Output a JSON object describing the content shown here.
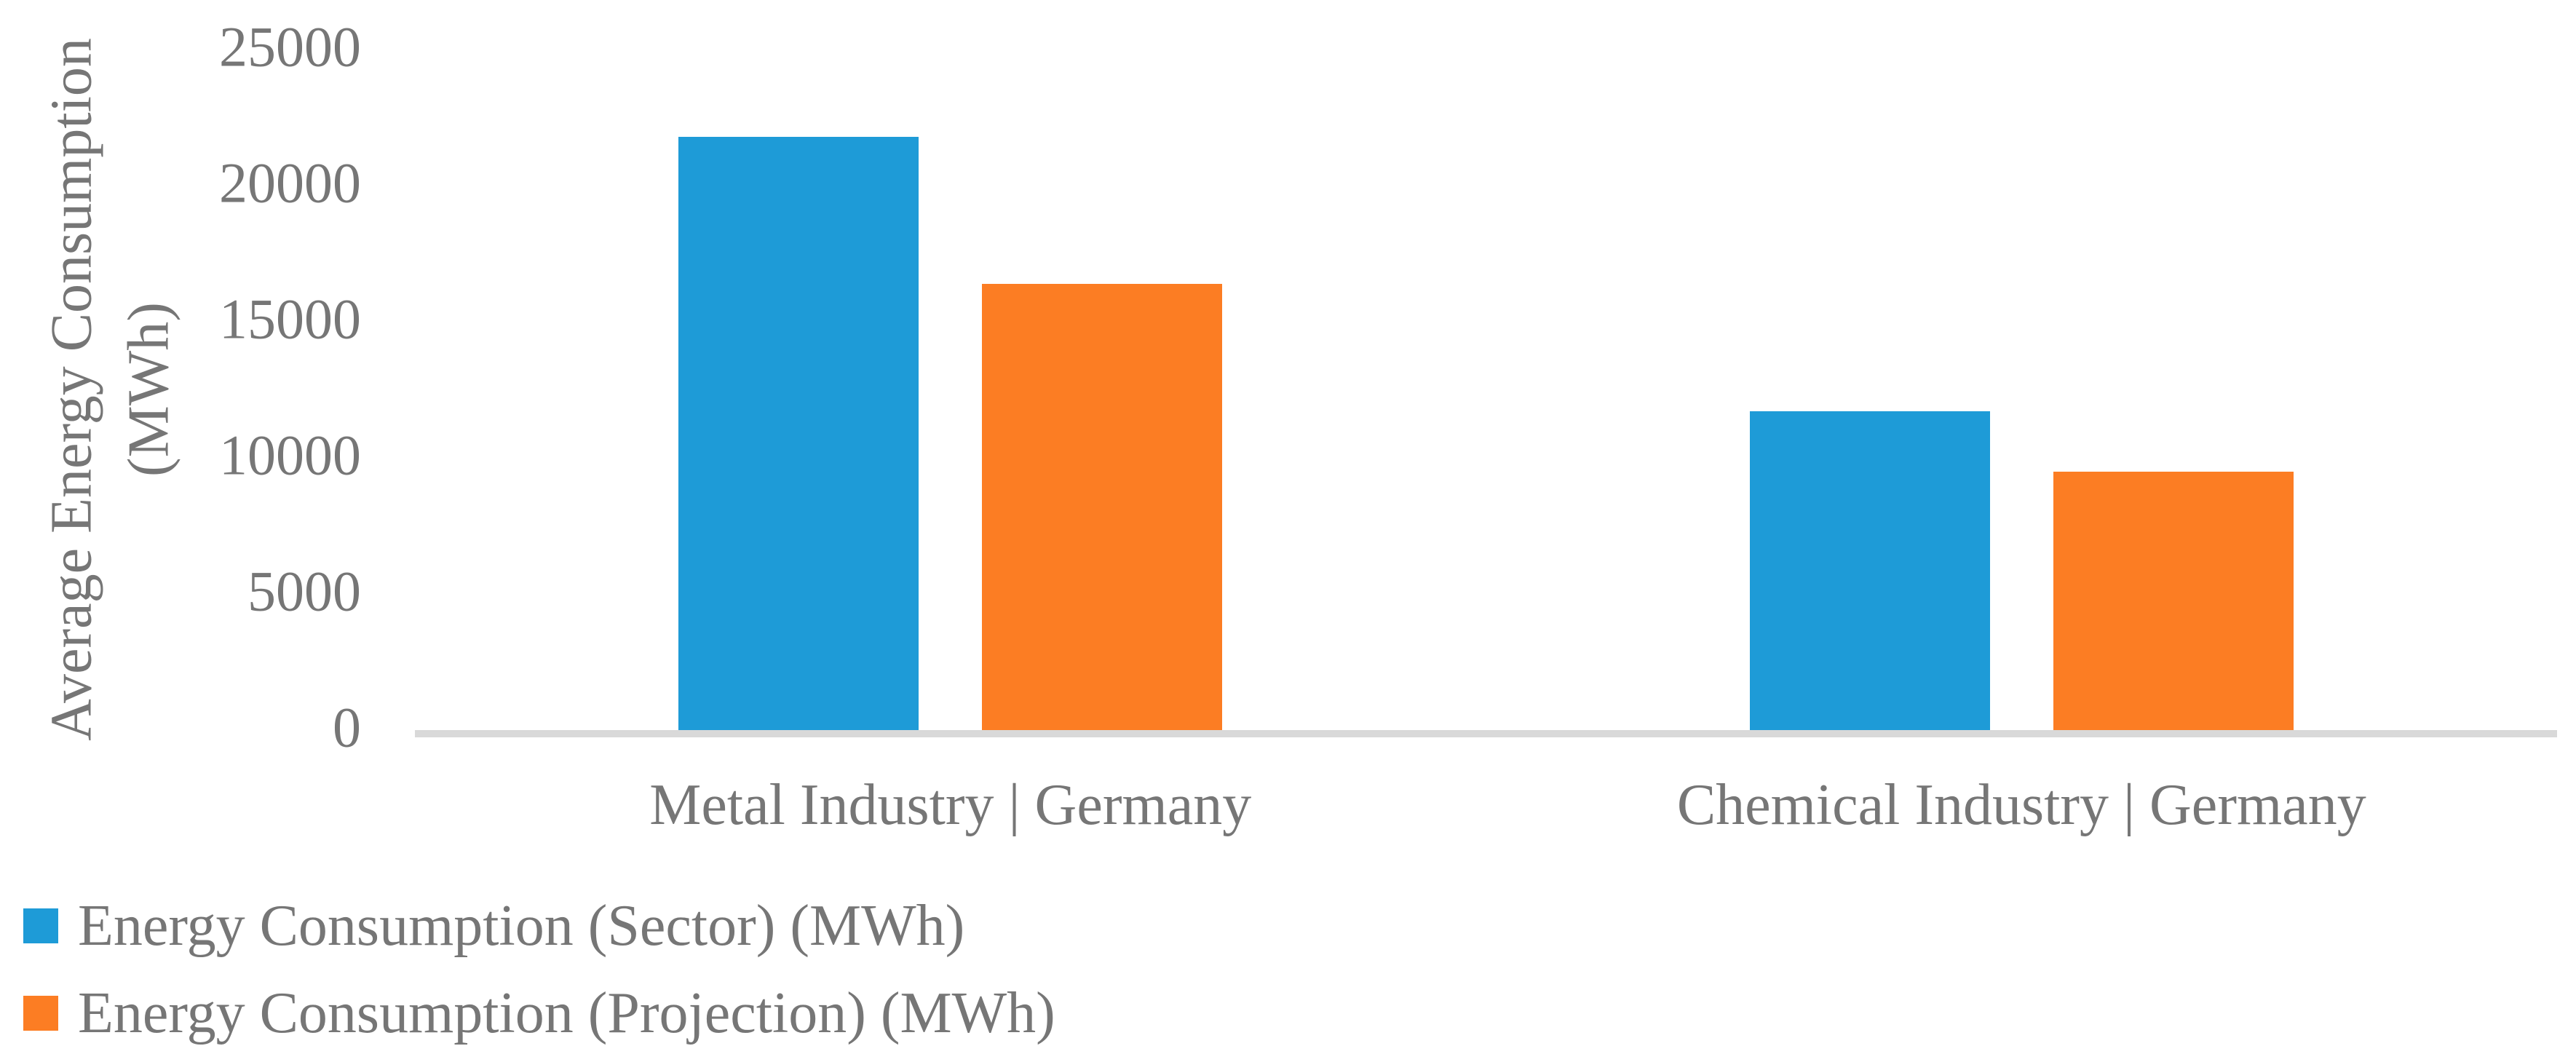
{
  "chart_data": {
    "type": "bar",
    "title": "",
    "categories": [
      "Metal Industry | Germany",
      "Chemical Industry | Germany"
    ],
    "series": [
      {
        "name": "Energy Consumption (Sector) (MWh)",
        "color": "#1E9BD7",
        "values": [
          21800,
          11700
        ]
      },
      {
        "name": "Energy Consumption (Projection) (MWh)",
        "color": "#FC7D23",
        "values": [
          16400,
          9500
        ]
      }
    ],
    "xlabel": "",
    "ylabel": "Average Energy Consumption (MWh)",
    "ylabel_lines": [
      "Average Energy Consumption",
      "(MWh)"
    ],
    "y_ticks": [
      0,
      5000,
      10000,
      15000,
      20000,
      25000
    ],
    "ylim": [
      0,
      25000
    ],
    "grid": false,
    "legend_position": "bottom-left",
    "colors": {
      "background": "#FFFFFF",
      "axis_line": "#D9D9D9",
      "text": "#767676"
    }
  }
}
